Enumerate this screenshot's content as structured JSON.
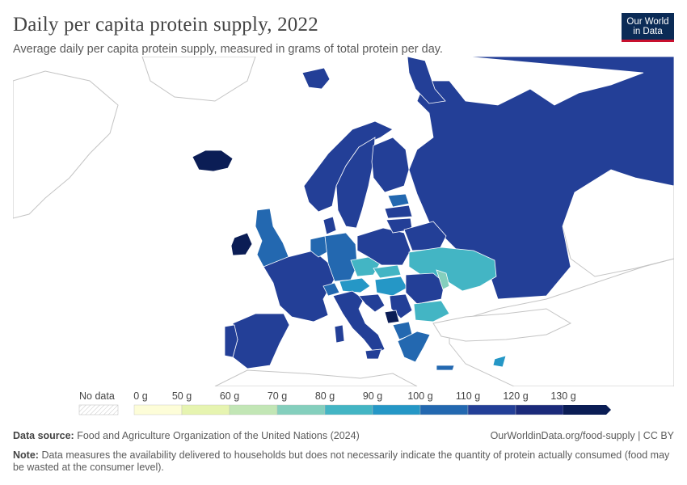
{
  "header": {
    "title": "Daily per capita protein supply, 2022",
    "subtitle": "Average daily per capita protein supply, measured in grams of total protein per day.",
    "logo_line1": "Our World",
    "logo_line2": "in Data"
  },
  "legend": {
    "no_data_label": "No data",
    "ticks": [
      "0 g",
      "50 g",
      "60 g",
      "70 g",
      "80 g",
      "90 g",
      "100 g",
      "110 g",
      "120 g",
      "130 g"
    ],
    "colors": [
      "#fdfdd8",
      "#e6f4b0",
      "#c2e6b5",
      "#84cfbd",
      "#43b5c4",
      "#2597c6",
      "#2368b0",
      "#233f97",
      "#1b2a7a",
      "#0b1d55"
    ]
  },
  "footer": {
    "source_label": "Data source:",
    "source_text": "Food and Agriculture Organization of the United Nations (2024)",
    "url": "OurWorldinData.org/food-supply | CC BY",
    "note_label": "Note:",
    "note_text": "Data measures the availability delivered to households but does not necessarily indicate the quantity of protein actually consumed (food may be wasted at the consumer level)."
  },
  "colors": {
    "land_outline": "#bbbbbb",
    "no_data_fill": "#ffffff"
  }
}
